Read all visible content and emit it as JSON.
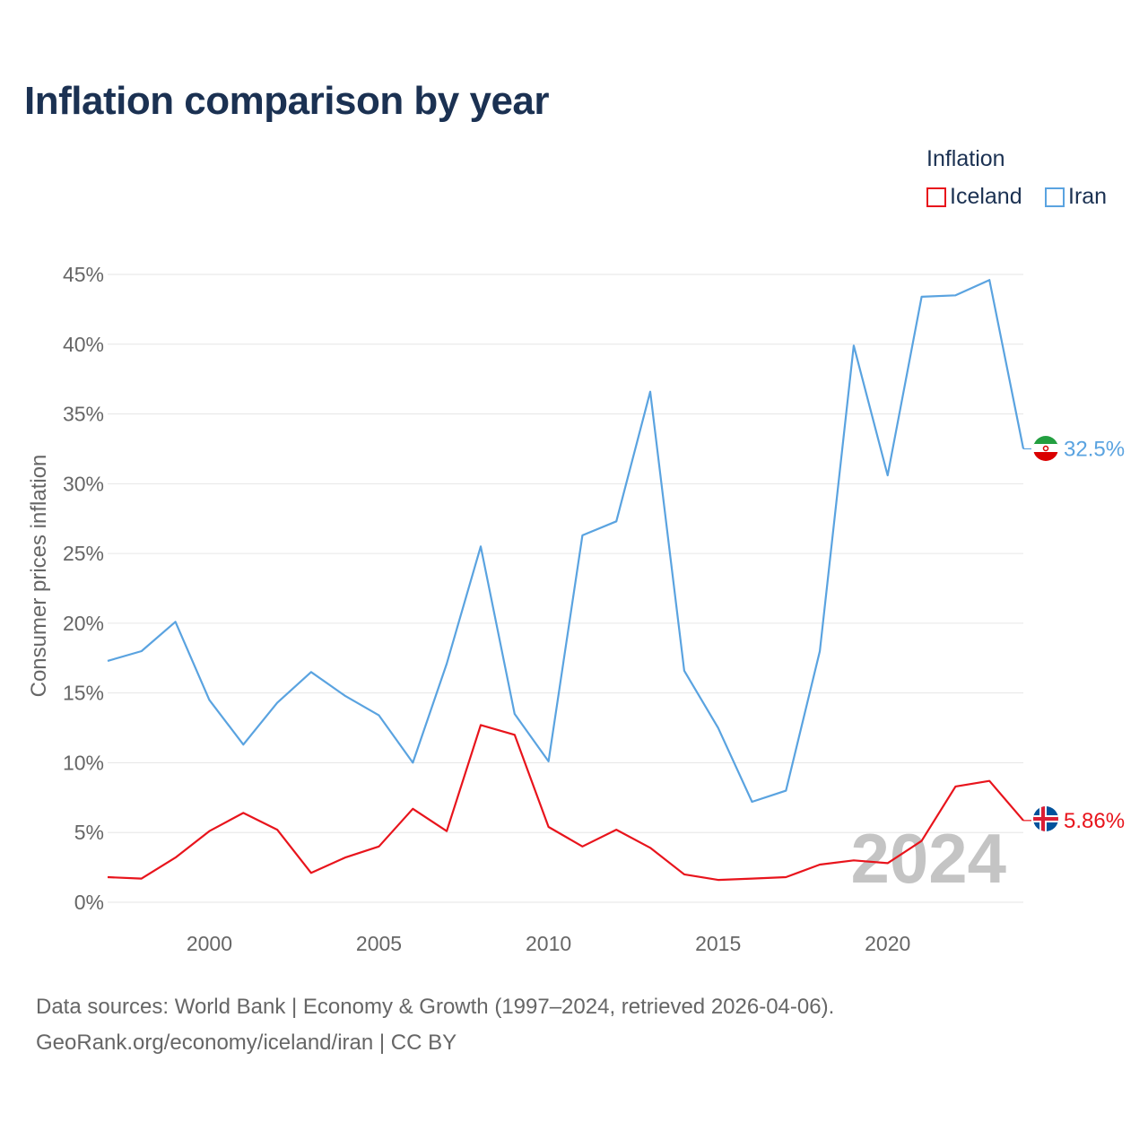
{
  "title": "Inflation comparison by year",
  "legend": {
    "title": "Inflation",
    "items": [
      {
        "label": "Iceland",
        "color": "#e8141c"
      },
      {
        "label": "Iran",
        "color": "#5aa3e0"
      }
    ]
  },
  "source": {
    "line1": "Data sources: World Bank | Economy & Growth (1997–2024, retrieved 2026-04-06).",
    "line2": "GeoRank.org/economy/iceland/iran | CC BY"
  },
  "year_label": "2024",
  "chart_data": {
    "type": "line",
    "title": "Inflation comparison by year",
    "xlabel": "",
    "ylabel": "Consumer prices inflation",
    "xlim": [
      1997,
      2024
    ],
    "ylim": [
      0,
      45
    ],
    "x_ticks": [
      2000,
      2005,
      2010,
      2015,
      2020
    ],
    "y_ticks": [
      0,
      5,
      10,
      15,
      20,
      25,
      30,
      35,
      40,
      45
    ],
    "y_tick_labels": [
      "0%",
      "5%",
      "10%",
      "15%",
      "20%",
      "25%",
      "30%",
      "35%",
      "40%",
      "45%"
    ],
    "grid": true,
    "legend_position": "top-right",
    "x": [
      1997,
      1998,
      1999,
      2000,
      2001,
      2002,
      2003,
      2004,
      2005,
      2006,
      2007,
      2008,
      2009,
      2010,
      2011,
      2012,
      2013,
      2014,
      2015,
      2016,
      2017,
      2018,
      2019,
      2020,
      2021,
      2022,
      2023,
      2024
    ],
    "series": [
      {
        "name": "Iceland",
        "color": "#e8141c",
        "end_label": "5.86%",
        "values": [
          1.8,
          1.7,
          3.2,
          5.1,
          6.4,
          5.2,
          2.1,
          3.2,
          4.0,
          6.7,
          5.1,
          12.7,
          12.0,
          5.4,
          4.0,
          5.2,
          3.9,
          2.0,
          1.6,
          1.7,
          1.8,
          2.7,
          3.0,
          2.8,
          4.4,
          8.3,
          8.7,
          5.86
        ]
      },
      {
        "name": "Iran",
        "color": "#5aa3e0",
        "end_label": "32.5%",
        "values": [
          17.3,
          18.0,
          20.1,
          14.5,
          11.3,
          14.3,
          16.5,
          14.8,
          13.4,
          10.0,
          17.1,
          25.5,
          13.5,
          10.1,
          26.3,
          27.3,
          36.6,
          16.6,
          12.5,
          7.2,
          8.0,
          18.0,
          39.9,
          30.6,
          43.4,
          43.5,
          44.6,
          32.5
        ]
      }
    ]
  }
}
